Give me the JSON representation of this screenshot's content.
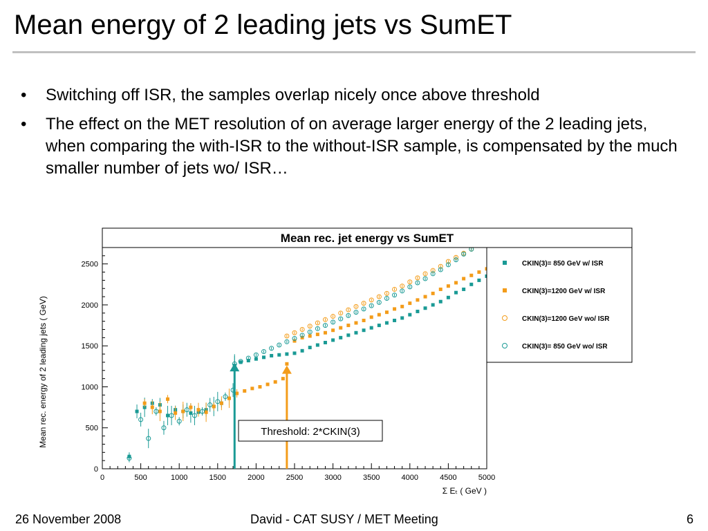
{
  "slide": {
    "title": "Mean energy of 2 leading jets vs SumET",
    "bullets": [
      "Switching off ISR, the samples overlap nicely once above threshold",
      "The effect on the MET resolution of on average larger energy of the 2 leading jets, when comparing the with-ISR to the without-ISR sample, is compensated by the much smaller number of jets wo/ ISR…"
    ],
    "footer": {
      "date": "26 November 2008",
      "center": "David - CAT SUSY / MET Meeting",
      "page": "6"
    }
  },
  "chart_data": {
    "type": "scatter",
    "title": "Mean rec. jet energy vs SumET",
    "xlabel": "Σ E_T ( GeV )",
    "ylabel": "Mean rec. energy of 2 leading jets ( GeV)",
    "xlim": [
      0,
      5000
    ],
    "ylim": [
      0,
      2700
    ],
    "x_ticks": [
      "0",
      "500",
      "1000",
      "1500",
      "2000",
      "2500",
      "3000",
      "3500",
      "4000",
      "4500",
      "5000"
    ],
    "y_ticks": [
      "0",
      "500",
      "1000",
      "1500",
      "2000",
      "2500"
    ],
    "legend_position": "top-right",
    "colors": {
      "teal": "#1a9a95",
      "orange": "#f39c1a"
    },
    "annotation": {
      "text": "Threshold: 2*CKIN(3)",
      "arrows": [
        {
          "x": 1720,
          "y_tip": 1290,
          "color": "#1a9a95"
        },
        {
          "x": 2400,
          "y_tip": 1260,
          "color": "#f39c1a"
        }
      ]
    },
    "series": [
      {
        "name": "CKIN(3)= 850 GeV w/ ISR",
        "marker": "filled-star",
        "color": "#1a9a95",
        "x": [
          350,
          450,
          550,
          650,
          750,
          850,
          950,
          1050,
          1150,
          1250,
          1350,
          1450,
          1550,
          1650,
          1720,
          1800,
          1900,
          2000,
          2100,
          2200,
          2300,
          2400,
          2500,
          2600,
          2700,
          2800,
          2900,
          3000,
          3100,
          3200,
          3300,
          3400,
          3500,
          3600,
          3700,
          3800,
          3900,
          4000,
          4100,
          4200,
          4300,
          4400,
          4500,
          4600,
          4700,
          4800,
          4900,
          5000
        ],
        "y": [
          150,
          700,
          750,
          800,
          780,
          650,
          720,
          700,
          680,
          690,
          720,
          760,
          800,
          860,
          1260,
          1300,
          1320,
          1340,
          1360,
          1380,
          1390,
          1400,
          1410,
          1440,
          1480,
          1510,
          1540,
          1570,
          1600,
          1630,
          1660,
          1690,
          1720,
          1750,
          1780,
          1810,
          1840,
          1880,
          1920,
          1960,
          2000,
          2040,
          2090,
          2150,
          2190,
          2250,
          2300,
          2350
        ]
      },
      {
        "name": "CKIN(3)=1200 GeV w/ ISR",
        "marker": "filled-star",
        "color": "#f39c1a",
        "x": [
          550,
          650,
          750,
          850,
          950,
          1050,
          1150,
          1250,
          1350,
          1450,
          1550,
          1650,
          1750,
          1850,
          1950,
          2050,
          2150,
          2250,
          2350,
          2400,
          2500,
          2600,
          2700,
          2800,
          2900,
          3000,
          3100,
          3200,
          3300,
          3400,
          3500,
          3600,
          3700,
          3800,
          3900,
          4000,
          4100,
          4200,
          4300,
          4400,
          4500,
          4600,
          4700,
          4800,
          4900,
          5000
        ],
        "y": [
          800,
          750,
          700,
          850,
          680,
          700,
          750,
          720,
          690,
          760,
          800,
          860,
          920,
          950,
          980,
          1000,
          1030,
          1060,
          1100,
          1280,
          1560,
          1600,
          1620,
          1640,
          1660,
          1690,
          1720,
          1750,
          1780,
          1810,
          1850,
          1880,
          1910,
          1950,
          1980,
          2020,
          2060,
          2100,
          2140,
          2190,
          2230,
          2270,
          2320,
          2360,
          2400,
          2440
        ]
      },
      {
        "name": "CKIN(3)=1200 GeV wo/ ISR",
        "marker": "open-circle",
        "color": "#f39c1a",
        "x": [
          2400,
          2500,
          2600,
          2700,
          2800,
          2900,
          3000,
          3100,
          3200,
          3300,
          3400,
          3500,
          3600,
          3700,
          3800,
          3900,
          4000,
          4100,
          4200,
          4300,
          4400,
          4500,
          4600,
          4700,
          4800
        ],
        "y": [
          1620,
          1660,
          1700,
          1740,
          1780,
          1820,
          1860,
          1900,
          1940,
          1980,
          2020,
          2060,
          2100,
          2140,
          2190,
          2230,
          2280,
          2330,
          2380,
          2420,
          2470,
          2530,
          2580,
          2630,
          2680
        ]
      },
      {
        "name": "CKIN(3)= 850 GeV wo/ ISR",
        "marker": "open-circle",
        "color": "#1a9a95",
        "x": [
          350,
          500,
          600,
          700,
          800,
          900,
          1000,
          1100,
          1200,
          1300,
          1400,
          1500,
          1600,
          1700,
          1720,
          1800,
          1900,
          2000,
          2100,
          2200,
          2300,
          2400,
          2500,
          2600,
          2700,
          2800,
          2900,
          3000,
          3100,
          3200,
          3300,
          3400,
          3500,
          3600,
          3700,
          3800,
          3900,
          4000,
          4100,
          4200,
          4300,
          4400,
          4500,
          4600,
          4700,
          4800
        ],
        "y": [
          130,
          600,
          370,
          700,
          500,
          650,
          580,
          720,
          650,
          700,
          780,
          820,
          880,
          960,
          1280,
          1310,
          1350,
          1390,
          1430,
          1470,
          1510,
          1550,
          1590,
          1630,
          1670,
          1710,
          1750,
          1790,
          1830,
          1870,
          1910,
          1950,
          1990,
          2030,
          2080,
          2120,
          2170,
          2220,
          2270,
          2320,
          2380,
          2430,
          2490,
          2550,
          2620,
          2680
        ]
      }
    ]
  }
}
